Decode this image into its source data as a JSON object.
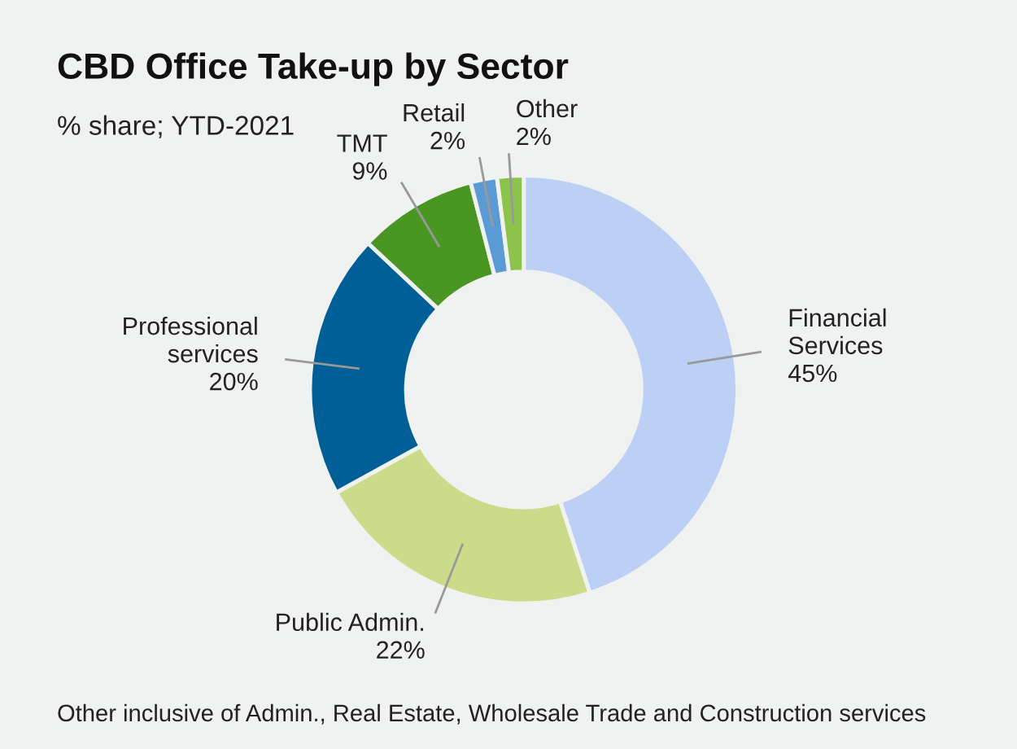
{
  "chart_data": {
    "type": "donut",
    "title": "CBD Office Take-up by Sector",
    "subtitle": "% share; YTD-2021",
    "categories": [
      "Financial\nServices",
      "Public Admin.",
      "Professional\nservices",
      "TMT",
      "Retail",
      "Other"
    ],
    "values": [
      45,
      22,
      20,
      9,
      2,
      2
    ],
    "value_labels": [
      "45%",
      "22%",
      "20%",
      "9%",
      "2%",
      "2%"
    ],
    "colors": [
      "#bccff5",
      "#ccdb8a",
      "#005f96",
      "#4a9623",
      "#5b9bd5",
      "#8cc34a"
    ],
    "annotations": [
      "Other inclusive of Admin., Real Estate, Wholesale Trade and Construction services"
    ],
    "legend": false
  }
}
